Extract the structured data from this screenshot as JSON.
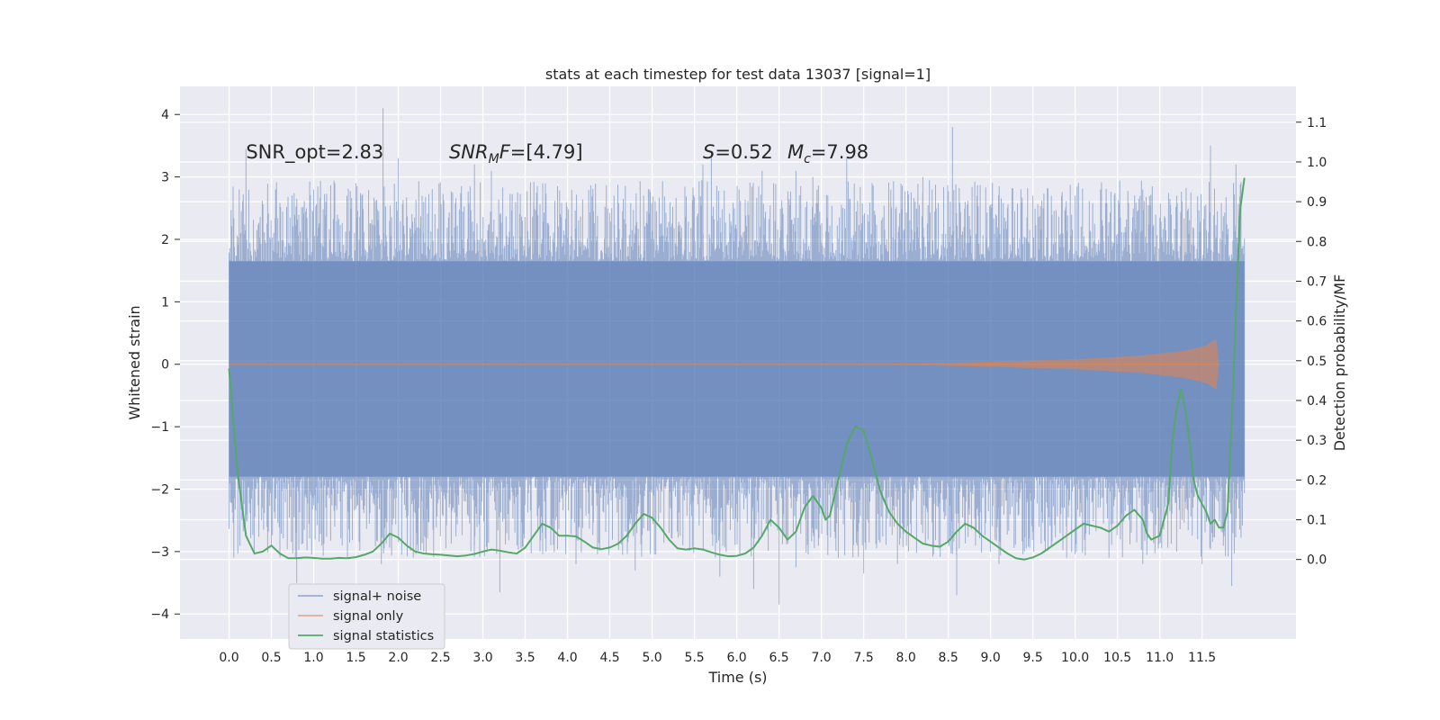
{
  "chart_data": {
    "type": "line",
    "title": "stats at each timestep for test data 13037 [signal=1]",
    "xlabel": "Time (s)",
    "ylabel_left": "Whitened strain",
    "ylabel_right": "Detection probability/MF",
    "xlim": [
      -0.58,
      12.61
    ],
    "ylim_left": [
      -4.4,
      4.45
    ],
    "ylim_right": [
      -0.2,
      1.19
    ],
    "x_ticks": [
      "0.0",
      "0.5",
      "1.0",
      "1.5",
      "2.0",
      "2.5",
      "3.0",
      "3.5",
      "4.0",
      "4.5",
      "5.0",
      "5.5",
      "6.0",
      "6.5",
      "7.0",
      "7.5",
      "8.0",
      "8.5",
      "9.0",
      "9.5",
      "10.0",
      "10.5",
      "11.0",
      "11.5"
    ],
    "y_ticks_left": [
      "-4",
      "-3",
      "-2",
      "-1",
      "0",
      "1",
      "2",
      "3",
      "4"
    ],
    "y_ticks_right": [
      "0.0",
      "0.1",
      "0.2",
      "0.3",
      "0.4",
      "0.5",
      "0.6",
      "0.7",
      "0.8",
      "0.9",
      "1.0",
      "1.1"
    ],
    "grid": true,
    "background": "#eaeaf2",
    "legend_position": "lower-left",
    "annotations": [
      {
        "parts": [
          {
            "t": "SNR_opt=2.83",
            "i": false
          }
        ],
        "x": 0.2,
        "y": 3.3
      },
      {
        "parts": [
          {
            "t": "SNR",
            "i": true
          },
          {
            "t": "M",
            "i": true,
            "sub": true
          },
          {
            "t": "F",
            "i": true
          },
          {
            "t": "=[4.79]",
            "i": false
          }
        ],
        "x": 2.6,
        "y": 3.3
      },
      {
        "parts": [
          {
            "t": "S",
            "i": true
          },
          {
            "t": "=0.52",
            "i": false
          }
        ],
        "x": 5.6,
        "y": 3.3
      },
      {
        "parts": [
          {
            "t": "M",
            "i": true
          },
          {
            "t": "c",
            "i": true,
            "sub": true
          },
          {
            "t": "=7.98",
            "i": false
          }
        ],
        "x": 6.6,
        "y": 3.3
      }
    ],
    "series": [
      {
        "name": "signal+ noise",
        "axis": "left",
        "color": "#4c72b0",
        "opacity": 0.5,
        "kind": "dense-noise",
        "x_range": [
          0,
          12.0
        ],
        "core_band": [
          -1.8,
          1.65
        ],
        "upper_spikes": [
          [
            0.2,
            3.45
          ],
          [
            0.55,
            2.8
          ],
          [
            1.0,
            2.8
          ],
          [
            1.25,
            2.9
          ],
          [
            1.5,
            2.9
          ],
          [
            1.82,
            4.1
          ],
          [
            2.0,
            3.3
          ],
          [
            2.3,
            2.6
          ],
          [
            2.9,
            3.2
          ],
          [
            3.1,
            3.1
          ],
          [
            3.6,
            2.6
          ],
          [
            4.3,
            2.8
          ],
          [
            4.55,
            2.7
          ],
          [
            4.9,
            2.7
          ],
          [
            5.6,
            3.2
          ],
          [
            5.7,
            3.4
          ],
          [
            6.3,
            3.1
          ],
          [
            6.7,
            3.1
          ],
          [
            6.9,
            3.0
          ],
          [
            7.3,
            3.3
          ],
          [
            7.6,
            2.9
          ],
          [
            8.2,
            3.0
          ],
          [
            8.55,
            3.8
          ],
          [
            8.7,
            2.6
          ],
          [
            9.2,
            2.5
          ],
          [
            9.5,
            2.7
          ],
          [
            10.0,
            2.7
          ],
          [
            10.3,
            2.8
          ],
          [
            10.8,
            2.8
          ],
          [
            11.2,
            2.7
          ],
          [
            11.6,
            3.5
          ],
          [
            11.9,
            3.2
          ]
        ],
        "lower_spikes": [
          [
            0.5,
            -2.9
          ],
          [
            0.8,
            -3.5
          ],
          [
            1.4,
            -3.1
          ],
          [
            1.8,
            -3.2
          ],
          [
            2.3,
            -3.0
          ],
          [
            2.9,
            -2.9
          ],
          [
            3.2,
            -3.65
          ],
          [
            3.7,
            -2.7
          ],
          [
            4.1,
            -3.2
          ],
          [
            4.8,
            -3.3
          ],
          [
            5.2,
            -2.7
          ],
          [
            5.8,
            -3.4
          ],
          [
            6.2,
            -3.6
          ],
          [
            6.5,
            -3.85
          ],
          [
            6.7,
            -3.25
          ],
          [
            7.2,
            -3.1
          ],
          [
            7.5,
            -3.35
          ],
          [
            7.9,
            -3.2
          ],
          [
            8.6,
            -3.7
          ],
          [
            9.1,
            -3.2
          ],
          [
            9.4,
            -3.0
          ],
          [
            9.9,
            -3.1
          ],
          [
            10.4,
            -3.1
          ],
          [
            10.8,
            -3.2
          ],
          [
            11.2,
            -3.0
          ],
          [
            11.5,
            -3.2
          ],
          [
            11.85,
            -3.55
          ]
        ]
      },
      {
        "name": "signal only",
        "axis": "left",
        "color": "#dd8452",
        "opacity": 0.6,
        "kind": "chirp",
        "x_range": [
          7.8,
          11.7
        ],
        "envelope": [
          [
            7.8,
            0.0
          ],
          [
            9.0,
            0.04
          ],
          [
            10.0,
            0.08
          ],
          [
            10.8,
            0.14
          ],
          [
            11.3,
            0.22
          ],
          [
            11.55,
            0.3
          ],
          [
            11.68,
            0.42
          ],
          [
            11.7,
            0.0
          ]
        ]
      },
      {
        "name": "signal statistics",
        "axis": "right",
        "color": "#55a868",
        "opacity": 1.0,
        "kind": "line",
        "points": [
          [
            0.0,
            0.48
          ],
          [
            0.1,
            0.22
          ],
          [
            0.2,
            0.06
          ],
          [
            0.3,
            0.015
          ],
          [
            0.4,
            0.02
          ],
          [
            0.5,
            0.035
          ],
          [
            0.6,
            0.015
          ],
          [
            0.7,
            0.003
          ],
          [
            0.8,
            0.003
          ],
          [
            0.9,
            0.005
          ],
          [
            1.0,
            0.004
          ],
          [
            1.1,
            0.002
          ],
          [
            1.2,
            0.002
          ],
          [
            1.3,
            0.004
          ],
          [
            1.4,
            0.003
          ],
          [
            1.5,
            0.006
          ],
          [
            1.6,
            0.012
          ],
          [
            1.7,
            0.02
          ],
          [
            1.8,
            0.04
          ],
          [
            1.9,
            0.065
          ],
          [
            2.0,
            0.055
          ],
          [
            2.1,
            0.035
          ],
          [
            2.2,
            0.02
          ],
          [
            2.3,
            0.015
          ],
          [
            2.4,
            0.013
          ],
          [
            2.5,
            0.012
          ],
          [
            2.6,
            0.01
          ],
          [
            2.7,
            0.008
          ],
          [
            2.8,
            0.01
          ],
          [
            2.9,
            0.014
          ],
          [
            3.0,
            0.02
          ],
          [
            3.1,
            0.025
          ],
          [
            3.2,
            0.022
          ],
          [
            3.3,
            0.018
          ],
          [
            3.4,
            0.015
          ],
          [
            3.5,
            0.03
          ],
          [
            3.6,
            0.06
          ],
          [
            3.7,
            0.09
          ],
          [
            3.8,
            0.08
          ],
          [
            3.9,
            0.06
          ],
          [
            4.0,
            0.06
          ],
          [
            4.1,
            0.058
          ],
          [
            4.2,
            0.045
          ],
          [
            4.3,
            0.03
          ],
          [
            4.4,
            0.026
          ],
          [
            4.5,
            0.03
          ],
          [
            4.6,
            0.04
          ],
          [
            4.7,
            0.06
          ],
          [
            4.8,
            0.09
          ],
          [
            4.9,
            0.115
          ],
          [
            5.0,
            0.105
          ],
          [
            5.1,
            0.08
          ],
          [
            5.2,
            0.05
          ],
          [
            5.3,
            0.028
          ],
          [
            5.4,
            0.025
          ],
          [
            5.5,
            0.028
          ],
          [
            5.6,
            0.025
          ],
          [
            5.7,
            0.018
          ],
          [
            5.8,
            0.012
          ],
          [
            5.9,
            0.008
          ],
          [
            6.0,
            0.009
          ],
          [
            6.1,
            0.015
          ],
          [
            6.2,
            0.03
          ],
          [
            6.3,
            0.06
          ],
          [
            6.4,
            0.1
          ],
          [
            6.5,
            0.08
          ],
          [
            6.6,
            0.05
          ],
          [
            6.7,
            0.07
          ],
          [
            6.8,
            0.13
          ],
          [
            6.9,
            0.16
          ],
          [
            7.0,
            0.13
          ],
          [
            7.05,
            0.1
          ],
          [
            7.1,
            0.11
          ],
          [
            7.2,
            0.2
          ],
          [
            7.3,
            0.29
          ],
          [
            7.4,
            0.335
          ],
          [
            7.5,
            0.325
          ],
          [
            7.6,
            0.25
          ],
          [
            7.7,
            0.17
          ],
          [
            7.8,
            0.12
          ],
          [
            7.9,
            0.09
          ],
          [
            8.0,
            0.07
          ],
          [
            8.1,
            0.055
          ],
          [
            8.2,
            0.04
          ],
          [
            8.3,
            0.035
          ],
          [
            8.4,
            0.032
          ],
          [
            8.5,
            0.045
          ],
          [
            8.6,
            0.07
          ],
          [
            8.7,
            0.09
          ],
          [
            8.8,
            0.08
          ],
          [
            8.9,
            0.06
          ],
          [
            9.0,
            0.045
          ],
          [
            9.1,
            0.03
          ],
          [
            9.2,
            0.015
          ],
          [
            9.3,
            0.003
          ],
          [
            9.4,
            0.0
          ],
          [
            9.5,
            0.005
          ],
          [
            9.6,
            0.015
          ],
          [
            9.7,
            0.03
          ],
          [
            9.8,
            0.045
          ],
          [
            9.9,
            0.06
          ],
          [
            10.0,
            0.075
          ],
          [
            10.1,
            0.09
          ],
          [
            10.2,
            0.085
          ],
          [
            10.3,
            0.08
          ],
          [
            10.4,
            0.07
          ],
          [
            10.5,
            0.085
          ],
          [
            10.6,
            0.11
          ],
          [
            10.7,
            0.125
          ],
          [
            10.8,
            0.1
          ],
          [
            10.85,
            0.065
          ],
          [
            10.9,
            0.05
          ],
          [
            11.0,
            0.06
          ],
          [
            11.05,
            0.1
          ],
          [
            11.1,
            0.14
          ],
          [
            11.15,
            0.3
          ],
          [
            11.2,
            0.38
          ],
          [
            11.25,
            0.43
          ],
          [
            11.3,
            0.38
          ],
          [
            11.35,
            0.3
          ],
          [
            11.4,
            0.2
          ],
          [
            11.45,
            0.16
          ],
          [
            11.5,
            0.14
          ],
          [
            11.55,
            0.12
          ],
          [
            11.6,
            0.09
          ],
          [
            11.65,
            0.1
          ],
          [
            11.7,
            0.08
          ],
          [
            11.75,
            0.08
          ],
          [
            11.8,
            0.12
          ],
          [
            11.85,
            0.35
          ],
          [
            11.9,
            0.62
          ],
          [
            11.95,
            0.88
          ],
          [
            12.0,
            0.96
          ]
        ]
      }
    ]
  }
}
